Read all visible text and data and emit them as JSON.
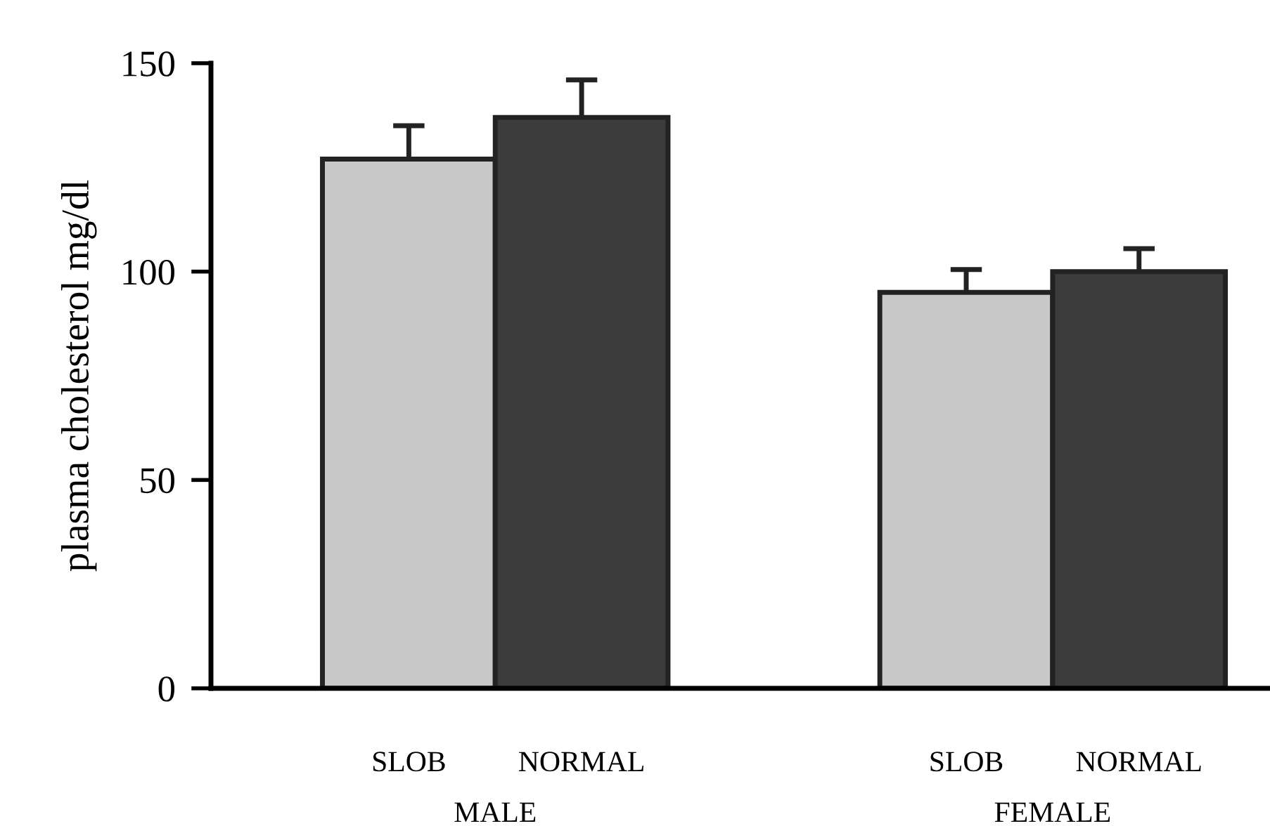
{
  "chart_data": {
    "type": "bar",
    "ylabel": "plasma cholesterol mg/dl",
    "categories": [
      "MALE",
      "FEMALE"
    ],
    "series": [
      {
        "name": "SLOB",
        "color": "#c8c8c8",
        "values": [
          127,
          95
        ],
        "errors": [
          8,
          5.5
        ]
      },
      {
        "name": "NORMAL",
        "color": "#3c3c3c",
        "values": [
          137,
          100
        ],
        "errors": [
          9,
          5.5
        ]
      }
    ],
    "ylim": [
      0,
      150
    ],
    "yticks": [
      0,
      50,
      100,
      150
    ],
    "grid": false,
    "legend": false
  }
}
